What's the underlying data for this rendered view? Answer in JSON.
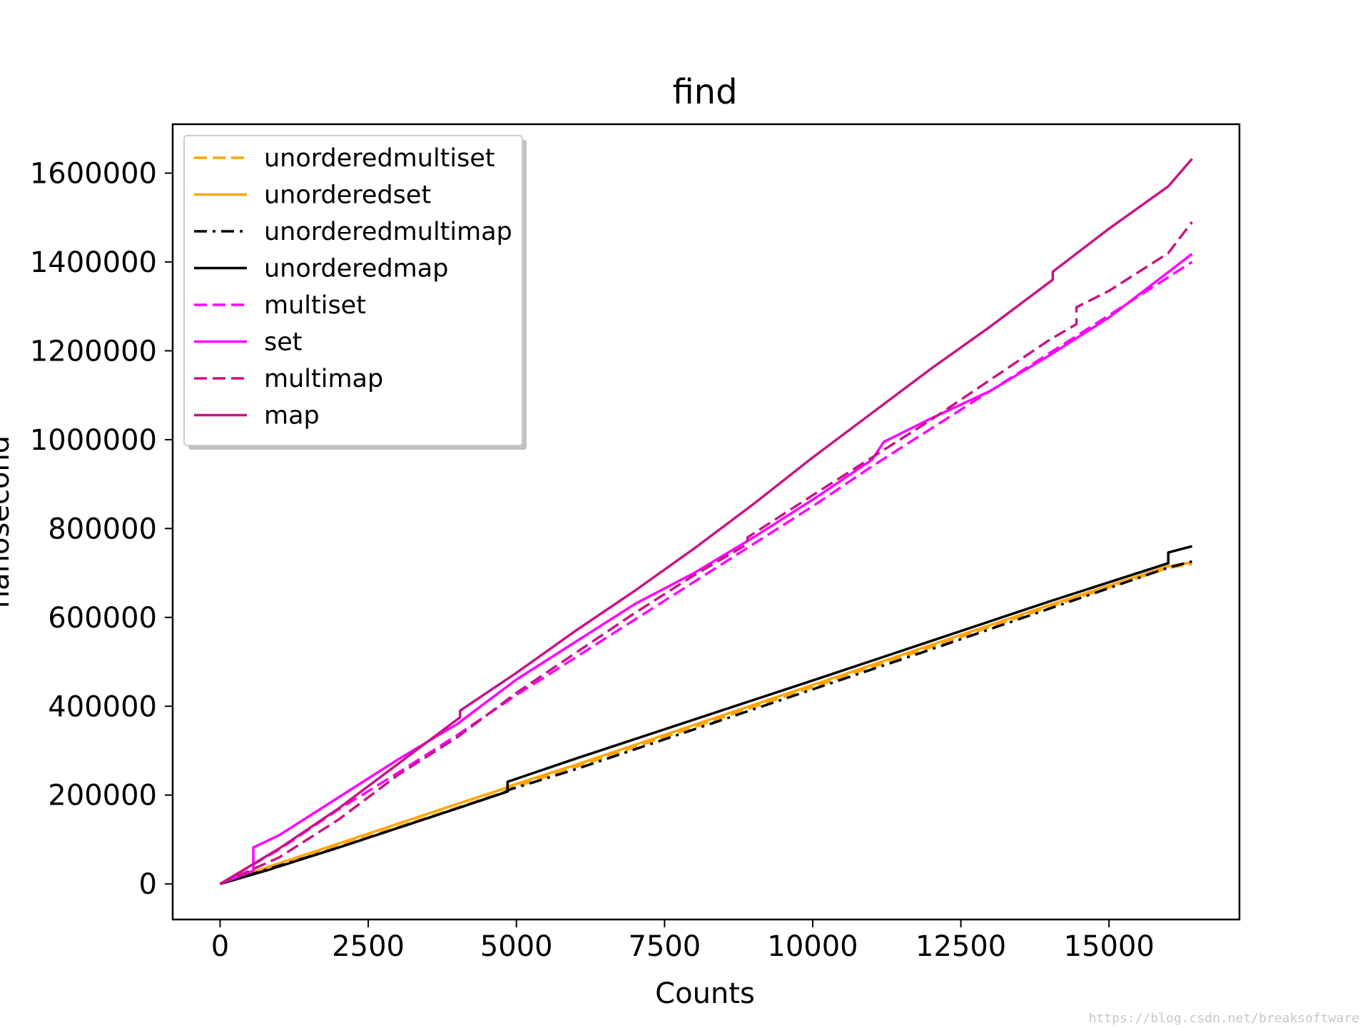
{
  "chart_data": {
    "type": "line",
    "title": "find",
    "xlabel": "Counts",
    "ylabel": "nanosecond",
    "xlim": [
      -800,
      17200
    ],
    "ylim": [
      -80000,
      1710000
    ],
    "xticks": [
      0,
      2500,
      5000,
      7500,
      10000,
      12500,
      15000
    ],
    "xtick_labels": [
      "0",
      "2500",
      "5000",
      "7500",
      "10000",
      "12500",
      "15000"
    ],
    "yticks": [
      0,
      200000,
      400000,
      600000,
      800000,
      1000000,
      1200000,
      1400000,
      1600000
    ],
    "ytick_labels": [
      "0",
      "200000",
      "400000",
      "600000",
      "800000",
      "1000000",
      "1200000",
      "1400000",
      "1600000"
    ],
    "grid": false,
    "legend_position": "upper-left",
    "series": [
      {
        "name": "unorderedmultiset",
        "color": "#ffa500",
        "dash": "dashed",
        "x": [
          0,
          800,
          2000,
          4000,
          4800,
          4900,
          6000,
          8000,
          10000,
          12000,
          14000,
          16000,
          16400
        ],
        "y": [
          0,
          34000,
          85000,
          172000,
          208000,
          215000,
          263000,
          353000,
          443000,
          533000,
          624000,
          711000,
          720000
        ]
      },
      {
        "name": "unorderedset",
        "color": "#ffa500",
        "dash": "solid",
        "x": [
          0,
          800,
          2000,
          4000,
          4800,
          4900,
          6000,
          8000,
          10000,
          12000,
          14000,
          16000,
          16400
        ],
        "y": [
          0,
          38000,
          91000,
          180000,
          215000,
          221000,
          268000,
          358000,
          448000,
          538000,
          628000,
          715000,
          724000
        ]
      },
      {
        "name": "unorderedmultimap",
        "color": "#000000",
        "dash": "dashdot",
        "x": [
          0,
          800,
          2000,
          4000,
          4800,
          4900,
          6000,
          8000,
          10000,
          12000,
          14000,
          16000,
          16400
        ],
        "y": [
          0,
          33000,
          82000,
          170000,
          206000,
          213000,
          258000,
          348000,
          438000,
          528000,
          620000,
          712000,
          726000
        ]
      },
      {
        "name": "unorderedmap",
        "color": "#000000",
        "dash": "solid",
        "x": [
          0,
          800,
          2000,
          4000,
          4850,
          4850,
          6000,
          8000,
          10000,
          12000,
          14000,
          16000,
          16000,
          16400
        ],
        "y": [
          0,
          31000,
          82000,
          170000,
          208000,
          230000,
          282000,
          370000,
          458000,
          547000,
          636000,
          722000,
          746000,
          760000
        ]
      },
      {
        "name": "multiset",
        "color": "#ff00ff",
        "dash": "dashed",
        "x": [
          0,
          1000,
          2000,
          3000,
          4000,
          5000,
          6000,
          7000,
          8000,
          9000,
          10000,
          11000,
          12000,
          13000,
          14000,
          15000,
          16400
        ],
        "y": [
          0,
          78000,
          168000,
          250000,
          335000,
          425000,
          510000,
          595000,
          680000,
          765000,
          850000,
          940000,
          1025000,
          1110000,
          1195000,
          1280000,
          1400000
        ]
      },
      {
        "name": "set",
        "color": "#ff00ff",
        "dash": "solid",
        "x": [
          0,
          560,
          560,
          1000,
          2000,
          3000,
          4000,
          5000,
          6000,
          7000,
          8000,
          9000,
          10000,
          11000,
          11200,
          12000,
          13000,
          14000,
          15000,
          16400
        ],
        "y": [
          0,
          30000,
          82000,
          110000,
          195000,
          280000,
          360000,
          460000,
          545000,
          630000,
          700000,
          780000,
          865000,
          955000,
          995000,
          1048000,
          1110000,
          1190000,
          1275000,
          1418000
        ]
      },
      {
        "name": "multimap",
        "color": "#c71585",
        "dash": "dashed",
        "x": [
          0,
          1000,
          2000,
          3000,
          4000,
          5000,
          6000,
          7000,
          8000,
          8900,
          8900,
          10000,
          11000,
          12000,
          13000,
          14000,
          14450,
          14450,
          15000,
          16000,
          16400
        ],
        "y": [
          0,
          60000,
          145000,
          245000,
          330000,
          430000,
          520000,
          610000,
          695000,
          765000,
          780000,
          875000,
          960000,
          1045000,
          1135000,
          1225000,
          1260000,
          1298000,
          1335000,
          1420000,
          1490000
        ]
      },
      {
        "name": "map",
        "color": "#c71585",
        "dash": "solid",
        "x": [
          0,
          1000,
          2000,
          3000,
          4050,
          4050,
          5000,
          6000,
          7000,
          8000,
          9000,
          10000,
          11000,
          12000,
          13000,
          14050,
          14050,
          15000,
          16000,
          16400
        ],
        "y": [
          0,
          80000,
          170000,
          270000,
          375000,
          390000,
          475000,
          570000,
          660000,
          755000,
          855000,
          960000,
          1060000,
          1160000,
          1255000,
          1360000,
          1378000,
          1475000,
          1570000,
          1632000
        ]
      }
    ]
  },
  "watermark": "https://blog.csdn.net/breaksoftware"
}
